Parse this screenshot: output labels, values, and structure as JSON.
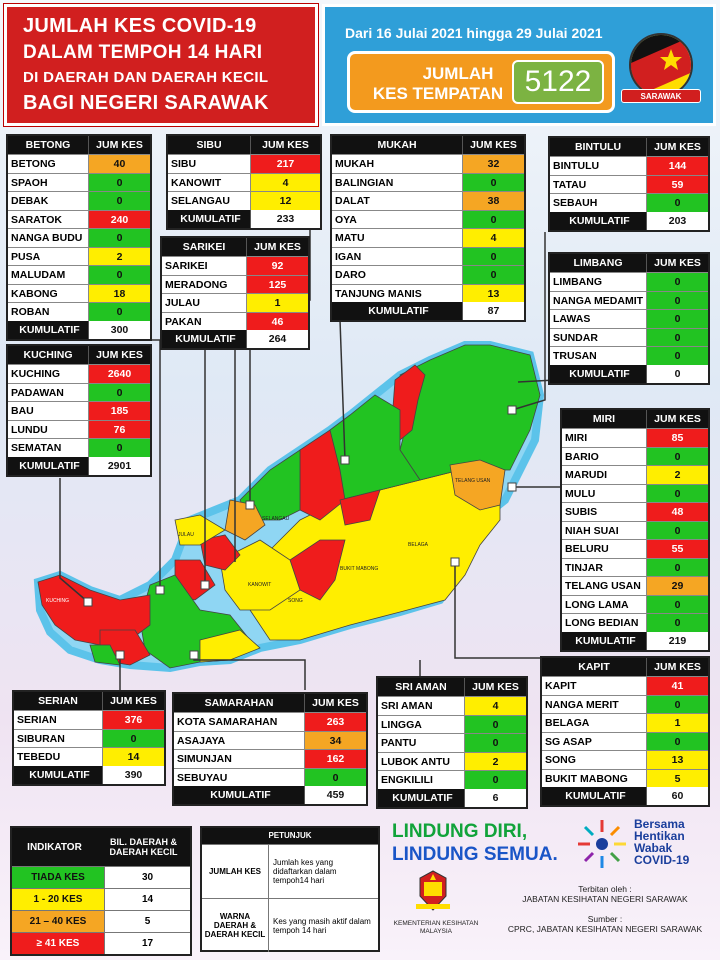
{
  "header": {
    "title_lines": [
      "JUMLAH KES COVID-19",
      "DALAM TEMPOH 14 HARI",
      "DI DAERAH DAN DAERAH KECIL",
      "BAGI NEGERI SARAWAK"
    ],
    "date_range": "Dari 16 Julai 2021 hingga 29 Julai 2021",
    "total_label_line1": "JUMLAH",
    "total_label_line2": "KES TEMPATAN",
    "total_value": "5122",
    "flag_label": "SARAWAK"
  },
  "col_header": "JUM KES",
  "cumulative_label": "KUMULATIF",
  "divisions": {
    "betong": {
      "name": "BETONG",
      "rows": [
        {
          "name": "BETONG",
          "value": "40",
          "color": "orange"
        },
        {
          "name": "SPAOH",
          "value": "0",
          "color": "green"
        },
        {
          "name": "DEBAK",
          "value": "0",
          "color": "green"
        },
        {
          "name": "SARATOK",
          "value": "240",
          "color": "red"
        },
        {
          "name": "NANGA BUDU",
          "value": "0",
          "color": "green"
        },
        {
          "name": "PUSA",
          "value": "2",
          "color": "yellow"
        },
        {
          "name": "MALUDAM",
          "value": "0",
          "color": "green"
        },
        {
          "name": "KABONG",
          "value": "18",
          "color": "yellow"
        },
        {
          "name": "ROBAN",
          "value": "0",
          "color": "green"
        }
      ],
      "total": "300"
    },
    "sibu": {
      "name": "SIBU",
      "rows": [
        {
          "name": "SIBU",
          "value": "217",
          "color": "red"
        },
        {
          "name": "KANOWIT",
          "value": "4",
          "color": "yellow"
        },
        {
          "name": "SELANGAU",
          "value": "12",
          "color": "yellow"
        }
      ],
      "total": "233"
    },
    "mukah": {
      "name": "MUKAH",
      "rows": [
        {
          "name": "MUKAH",
          "value": "32",
          "color": "orange"
        },
        {
          "name": "BALINGIAN",
          "value": "0",
          "color": "green"
        },
        {
          "name": "DALAT",
          "value": "38",
          "color": "orange"
        },
        {
          "name": "OYA",
          "value": "0",
          "color": "green"
        },
        {
          "name": "MATU",
          "value": "4",
          "color": "yellow"
        },
        {
          "name": "IGAN",
          "value": "0",
          "color": "green"
        },
        {
          "name": "DARO",
          "value": "0",
          "color": "green"
        },
        {
          "name": "TANJUNG MANIS",
          "value": "13",
          "color": "yellow"
        }
      ],
      "total": "87"
    },
    "bintulu": {
      "name": "BINTULU",
      "rows": [
        {
          "name": "BINTULU",
          "value": "144",
          "color": "red"
        },
        {
          "name": "TATAU",
          "value": "59",
          "color": "red"
        },
        {
          "name": "SEBAUH",
          "value": "0",
          "color": "green"
        }
      ],
      "total": "203"
    },
    "sarikei": {
      "name": "SARIKEI",
      "rows": [
        {
          "name": "SARIKEI",
          "value": "92",
          "color": "red"
        },
        {
          "name": "MERADONG",
          "value": "125",
          "color": "red"
        },
        {
          "name": "JULAU",
          "value": "1",
          "color": "yellow"
        },
        {
          "name": "PAKAN",
          "value": "46",
          "color": "red"
        }
      ],
      "total": "264"
    },
    "limbang": {
      "name": "LIMBANG",
      "rows": [
        {
          "name": "LIMBANG",
          "value": "0",
          "color": "green"
        },
        {
          "name": "NANGA MEDAMIT",
          "value": "0",
          "color": "green"
        },
        {
          "name": "LAWAS",
          "value": "0",
          "color": "green"
        },
        {
          "name": "SUNDAR",
          "value": "0",
          "color": "green"
        },
        {
          "name": "TRUSAN",
          "value": "0",
          "color": "green"
        }
      ],
      "total": "0"
    },
    "kuching": {
      "name": "KUCHING",
      "rows": [
        {
          "name": "KUCHING",
          "value": "2640",
          "color": "red"
        },
        {
          "name": "PADAWAN",
          "value": "0",
          "color": "green"
        },
        {
          "name": "BAU",
          "value": "185",
          "color": "red"
        },
        {
          "name": "LUNDU",
          "value": "76",
          "color": "red"
        },
        {
          "name": "SEMATAN",
          "value": "0",
          "color": "green"
        }
      ],
      "total": "2901"
    },
    "miri": {
      "name": "MIRI",
      "rows": [
        {
          "name": "MIRI",
          "value": "85",
          "color": "red"
        },
        {
          "name": "BARIO",
          "value": "0",
          "color": "green"
        },
        {
          "name": "MARUDI",
          "value": "2",
          "color": "yellow"
        },
        {
          "name": "MULU",
          "value": "0",
          "color": "green"
        },
        {
          "name": "SUBIS",
          "value": "48",
          "color": "red"
        },
        {
          "name": "NIAH SUAI",
          "value": "0",
          "color": "green"
        },
        {
          "name": "BELURU",
          "value": "55",
          "color": "red"
        },
        {
          "name": "TINJAR",
          "value": "0",
          "color": "green"
        },
        {
          "name": "TELANG USAN",
          "value": "29",
          "color": "orange"
        },
        {
          "name": "LONG LAMA",
          "value": "0",
          "color": "green"
        },
        {
          "name": "LONG BEDIAN",
          "value": "0",
          "color": "green"
        }
      ],
      "total": "219"
    },
    "kapit": {
      "name": "KAPIT",
      "rows": [
        {
          "name": "KAPIT",
          "value": "41",
          "color": "red"
        },
        {
          "name": "NANGA MERIT",
          "value": "0",
          "color": "green"
        },
        {
          "name": "BELAGA",
          "value": "1",
          "color": "yellow"
        },
        {
          "name": "SG ASAP",
          "value": "0",
          "color": "green"
        },
        {
          "name": "SONG",
          "value": "13",
          "color": "yellow"
        },
        {
          "name": "BUKIT MABONG",
          "value": "5",
          "color": "yellow"
        }
      ],
      "total": "60"
    },
    "serian": {
      "name": "SERIAN",
      "rows": [
        {
          "name": "SERIAN",
          "value": "376",
          "color": "red"
        },
        {
          "name": "SIBURAN",
          "value": "0",
          "color": "green"
        },
        {
          "name": "TEBEDU",
          "value": "14",
          "color": "yellow"
        }
      ],
      "total": "390"
    },
    "samarahan": {
      "name": "SAMARAHAN",
      "rows": [
        {
          "name": "KOTA SAMARAHAN",
          "value": "263",
          "color": "red"
        },
        {
          "name": "ASAJAYA",
          "value": "34",
          "color": "orange"
        },
        {
          "name": "SIMUNJAN",
          "value": "162",
          "color": "red"
        },
        {
          "name": "SEBUYAU",
          "value": "0",
          "color": "green"
        }
      ],
      "total": "459"
    },
    "sri_aman": {
      "name": "SRI AMAN",
      "rows": [
        {
          "name": "SRI AMAN",
          "value": "4",
          "color": "yellow"
        },
        {
          "name": "LINGGA",
          "value": "0",
          "color": "green"
        },
        {
          "name": "PANTU",
          "value": "0",
          "color": "green"
        },
        {
          "name": "LUBOK ANTU",
          "value": "2",
          "color": "yellow"
        },
        {
          "name": "ENGKILILI",
          "value": "0",
          "color": "green"
        }
      ],
      "total": "6"
    }
  },
  "legend": {
    "header_indicator": "INDIKATOR",
    "header_count": "BIL. DAERAH & DAERAH KECIL",
    "rows": [
      {
        "label": "TIADA KES",
        "count": "30",
        "color": "green"
      },
      {
        "label": "1 - 20 KES",
        "count": "14",
        "color": "yellow"
      },
      {
        "label": "21 – 40 KES",
        "count": "5",
        "color": "orange"
      },
      {
        "label": "≥ 41 KES",
        "count": "17",
        "color": "red"
      }
    ]
  },
  "guide": {
    "title": "PETUNJUK",
    "row1_key": "JUMLAH KES",
    "row1_text": "Jumlah kes yang didaftarkan dalam tempoh14 hari",
    "row2_key": "WARNA DAERAH & DAERAH KECIL",
    "row2_text": "Kes yang masih aktif dalam tempoh 14 hari"
  },
  "footer": {
    "slogan_line1": "LINDUNG DIRI,",
    "slogan_line2": "LINDUNG SEMUA.",
    "brand_line1": "Bersama",
    "brand_line2": "Hentikan",
    "brand_line3": "Wabak",
    "brand_line4": "COVID-19",
    "ministry": "KEMENTERIAN KESIHATAN MALAYSIA",
    "published_by_label": "Terbitan oleh :",
    "published_by": "JABATAN KESIHATAN NEGERI SARAWAK",
    "source_label": "Sumber :",
    "source": "CPRC, JABATAN KESIHATAN NEGERI SARAWAK"
  },
  "colors": {
    "red": "#ef1c1c",
    "yellow": "#ffee00",
    "orange": "#f5a623",
    "green": "#22c322",
    "header_red": "#d11f1f",
    "header_blue": "#2f9fd8"
  },
  "map_labels": [
    "KUCHING",
    "KANOWIT",
    "SONG",
    "BELAGA",
    "BUKIT MABONG",
    "TELANG USAN",
    "JULAU",
    "SELANGAU"
  ]
}
